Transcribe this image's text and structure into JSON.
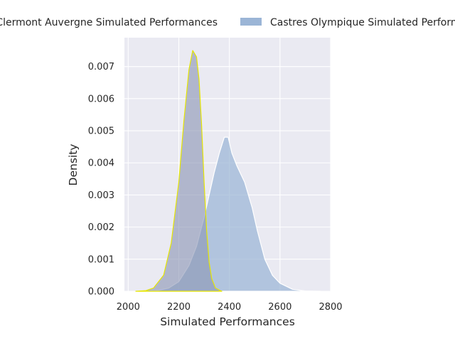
{
  "chart_data": {
    "type": "area",
    "xlabel": "Simulated Performances",
    "ylabel": "Density",
    "xlim": [
      1985,
      2800
    ],
    "ylim": [
      0,
      0.0079
    ],
    "xticks": [
      2000,
      2200,
      2400,
      2600,
      2800
    ],
    "yticks": [
      0.0,
      0.001,
      0.002,
      0.003,
      0.004,
      0.005,
      0.006,
      0.007
    ],
    "ytick_labels": [
      "0.000",
      "0.001",
      "0.002",
      "0.003",
      "0.004",
      "0.005",
      "0.006",
      "0.007"
    ],
    "grid": true,
    "legend_position": "top",
    "series": [
      {
        "name": "Clermont Auvergne Simulated Performances",
        "color": "#8c96b4",
        "edge_color": "#e6e600",
        "x": [
          2030,
          2070,
          2100,
          2140,
          2170,
          2200,
          2220,
          2240,
          2255,
          2270,
          2280,
          2290,
          2300,
          2310,
          2320,
          2330,
          2345,
          2370
        ],
        "values": [
          0.0,
          2e-05,
          0.0001,
          0.0005,
          0.0015,
          0.0034,
          0.0053,
          0.0069,
          0.0075,
          0.0073,
          0.0066,
          0.0052,
          0.0034,
          0.0019,
          0.0009,
          0.0004,
          0.0001,
          0.0
        ]
      },
      {
        "name": "Castres Olympique Simulated Performances",
        "color": "#9bb5d6",
        "edge_color": "#ffffff",
        "x": [
          2080,
          2120,
          2160,
          2200,
          2240,
          2270,
          2300,
          2320,
          2340,
          2360,
          2380,
          2395,
          2410,
          2430,
          2460,
          2490,
          2510,
          2540,
          2570,
          2600,
          2650,
          2700,
          2760
        ],
        "values": [
          0.0,
          3e-05,
          0.0001,
          0.0003,
          0.0008,
          0.0014,
          0.0023,
          0.003,
          0.0037,
          0.0043,
          0.0048,
          0.0048,
          0.0043,
          0.0039,
          0.0034,
          0.0026,
          0.0019,
          0.001,
          0.0005,
          0.00025,
          6e-05,
          1e-05,
          0.0
        ]
      }
    ]
  }
}
